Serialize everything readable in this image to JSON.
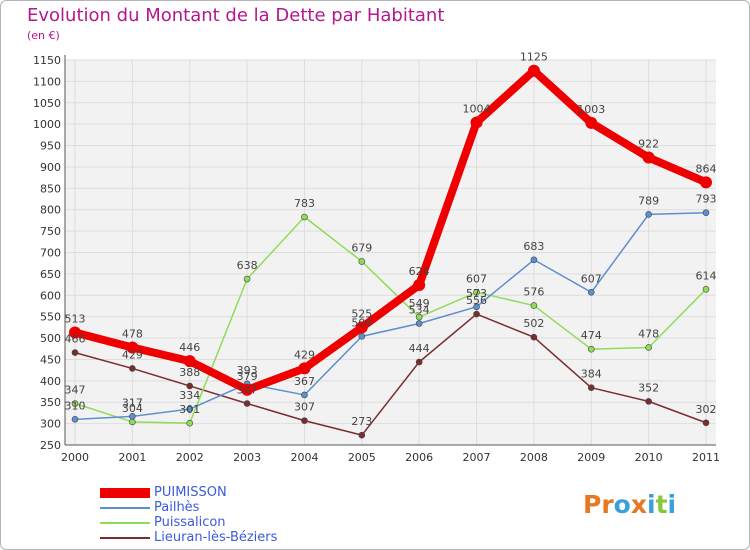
{
  "header": {
    "title": "Evolution du Montant de la Dette par Habitant",
    "unit": "(en €)"
  },
  "logo": {
    "letters": [
      "P",
      "r",
      "o",
      "x",
      "i",
      "t",
      "i"
    ]
  },
  "colors": {
    "title": "#b5178e",
    "legend_text": "#3b5bdb",
    "series": [
      "#ee0000",
      "#5b8fcf",
      "#8fdc5a",
      "#7a2d2d"
    ],
    "logo": [
      "#e87722",
      "#e87722",
      "#3aa0dc",
      "#e87722",
      "#3aa0dc",
      "#8cc63f",
      "#3aa0dc"
    ]
  },
  "chart_data": {
    "type": "line",
    "title": "Evolution du Montant de la Dette par Habitant",
    "ylabel": "(en €)",
    "xlabel": "",
    "ylim": [
      250,
      1150
    ],
    "yticks": [
      250,
      300,
      350,
      400,
      450,
      500,
      550,
      600,
      650,
      700,
      750,
      800,
      850,
      900,
      950,
      1000,
      1050,
      1100,
      1150
    ],
    "categories": [
      "2000",
      "2001",
      "2002",
      "2003",
      "2004",
      "2005",
      "2006",
      "2007",
      "2008",
      "2009",
      "2010",
      "2011"
    ],
    "grid": true,
    "legend_position": "bottom-left",
    "series": [
      {
        "name": "PUIMISSON",
        "values": [
          513,
          478,
          446,
          379,
          429,
          525,
          624,
          1004,
          1125,
          1003,
          922,
          864
        ],
        "labels": [
          "513",
          "478",
          "446",
          "379",
          "429",
          "525",
          "624",
          "1004",
          "1125",
          "1003",
          "922",
          "864"
        ]
      },
      {
        "name": "Pailhès",
        "values": [
          310,
          317,
          334,
          393,
          367,
          504,
          534,
          573,
          683,
          607,
          789,
          793
        ],
        "labels": [
          "310",
          "317",
          "334",
          "393",
          "367",
          "504",
          "534",
          "573",
          "683",
          "607",
          "789",
          "793"
        ]
      },
      {
        "name": "Puissalicon",
        "values": [
          347,
          304,
          301,
          638,
          783,
          679,
          549,
          607,
          576,
          474,
          478,
          614
        ],
        "labels": [
          "347",
          "304",
          "301",
          "638",
          "783",
          "679",
          "549",
          "607",
          "576",
          "474",
          "478",
          "614"
        ]
      },
      {
        "name": "Lieuran-lès-Béziers",
        "values": [
          466,
          429,
          388,
          347,
          307,
          273,
          444,
          556,
          502,
          384,
          352,
          302
        ],
        "labels": [
          "466",
          "429",
          "388",
          "347",
          "307",
          "273",
          "444",
          "556",
          "502",
          "384",
          "352",
          "302"
        ]
      }
    ]
  }
}
